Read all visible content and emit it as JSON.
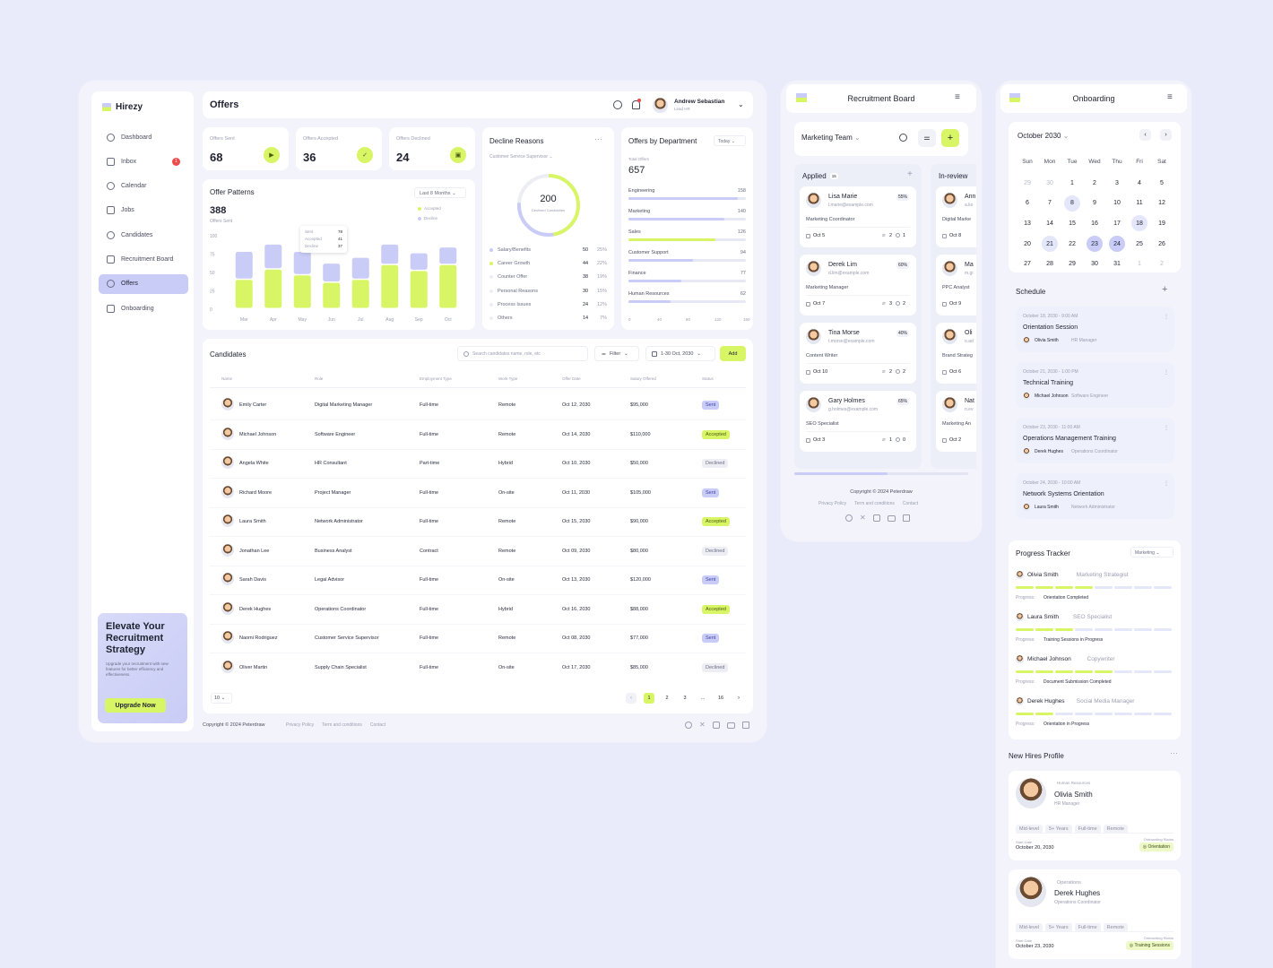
{
  "app": {
    "name": "Hirezy"
  },
  "sidebar": {
    "items": [
      {
        "label": "Dashboard",
        "icon": "grid-icon"
      },
      {
        "label": "Inbox",
        "icon": "inbox-icon",
        "badge": "1"
      },
      {
        "label": "Calendar",
        "icon": "calendar-icon"
      },
      {
        "label": "Jobs",
        "icon": "briefcase-icon"
      },
      {
        "label": "Candidates",
        "icon": "users-icon"
      },
      {
        "label": "Recruitment Board",
        "icon": "board-icon"
      },
      {
        "label": "Offers",
        "icon": "offers-icon",
        "active": true
      },
      {
        "label": "Onboarding",
        "icon": "onboarding-icon"
      }
    ],
    "promo": {
      "title": "Elevate Your Recruitment Strategy",
      "text": "Upgrade your recruitment with new features for better efficiency and effectiveness.",
      "button": "Upgrade Now"
    }
  },
  "header": {
    "title": "Offers",
    "user_name": "Andrew Sebastian",
    "user_role": "Lead HR"
  },
  "stats": [
    {
      "label": "Offers Sent",
      "value": "68",
      "icon": "send-icon"
    },
    {
      "label": "Offers Accepted",
      "value": "36",
      "icon": "check-icon"
    },
    {
      "label": "Offers Declined",
      "value": "24",
      "icon": "decline-icon"
    }
  ],
  "patterns": {
    "title": "Offer Patterns",
    "total": "388",
    "total_label": "Offers Sent",
    "range": "Last 8 Months",
    "legend": [
      "Accepted",
      "Decline"
    ],
    "tooltip": {
      "sent_label": "Sent",
      "sent": "78",
      "acc_label": "Accepted",
      "acc": "41",
      "dec_label": "Decline",
      "dec": "37"
    }
  },
  "chart_data": {
    "type": "bar",
    "title": "Offer Patterns",
    "categories": [
      "Mar",
      "Apr",
      "May",
      "Jun",
      "Jul",
      "Aug",
      "Sep",
      "Oct"
    ],
    "series": [
      {
        "name": "Accepted",
        "values": [
          40,
          54,
          46,
          36,
          40,
          60,
          52,
          60
        ],
        "color": "#d8f565"
      },
      {
        "name": "Decline",
        "values": [
          38,
          34,
          32,
          26,
          30,
          28,
          24,
          24
        ],
        "color": "#c9ccf6"
      }
    ],
    "stacked": true,
    "yticks": [
      "100",
      "75",
      "50",
      "25",
      "0"
    ],
    "ylim": [
      0,
      100
    ],
    "grid": false,
    "legend": "top-right"
  },
  "decline": {
    "title": "Decline Reasons",
    "filter": "Customer Service Supervisor",
    "total": "200",
    "total_label": "Declined Candidates",
    "reasons": [
      {
        "label": "Salary/Benefits",
        "value": "50",
        "pct": "25%"
      },
      {
        "label": "Career Growth",
        "value": "44",
        "pct": "22%"
      },
      {
        "label": "Counter Offer",
        "value": "38",
        "pct": "19%"
      },
      {
        "label": "Personal Reasons",
        "value": "30",
        "pct": "15%"
      },
      {
        "label": "Process Issues",
        "value": "24",
        "pct": "12%"
      },
      {
        "label": "Others",
        "value": "14",
        "pct": "7%"
      }
    ]
  },
  "departments": {
    "title": "Offers by Department",
    "range": "Today",
    "total_label": "Total Offers",
    "total": "657",
    "items": [
      {
        "label": "Engineering",
        "value": "158",
        "frac": 0.93
      },
      {
        "label": "Marketing",
        "value": "140",
        "frac": 0.82
      },
      {
        "label": "Sales",
        "value": "126",
        "frac": 0.74
      },
      {
        "label": "Customer Support",
        "value": "94",
        "frac": 0.55
      },
      {
        "label": "Finance",
        "value": "77",
        "frac": 0.45
      },
      {
        "label": "Human Resources",
        "value": "62",
        "frac": 0.36
      }
    ],
    "axis": [
      "0",
      "40",
      "80",
      "120",
      "160"
    ]
  },
  "candidates": {
    "title": "Candidates",
    "search_placeholder": "Search candidates name, role, etc",
    "filter": "Filter",
    "date": "1-30 Oct, 2030",
    "add": "Add",
    "columns": [
      "Name",
      "Role",
      "Employment Type",
      "Work Type",
      "Offer Date",
      "Salary Offered",
      "Status"
    ],
    "rows": [
      [
        "Emily Carter",
        "Digital Marketing Manager",
        "Full-time",
        "Remote",
        "Oct 12, 2030",
        "$95,000",
        "Sent"
      ],
      [
        "Michael Johnson",
        "Software Engineer",
        "Full-time",
        "Remote",
        "Oct 14, 2030",
        "$110,000",
        "Accepted"
      ],
      [
        "Angela White",
        "HR Consultant",
        "Part-time",
        "Hybrid",
        "Oct 10, 2030",
        "$50,000",
        "Declined"
      ],
      [
        "Richard Moore",
        "Project Manager",
        "Full-time",
        "On-site",
        "Oct 11, 2030",
        "$105,000",
        "Sent"
      ],
      [
        "Laura Smith",
        "Network Administrator",
        "Full-time",
        "Remote",
        "Oct 15, 2030",
        "$90,000",
        "Accepted"
      ],
      [
        "Jonathan Lee",
        "Business Analyst",
        "Contract",
        "Remote",
        "Oct 09, 2030",
        "$80,000",
        "Declined"
      ],
      [
        "Sarah Davis",
        "Legal Advisor",
        "Full-time",
        "On-site",
        "Oct 13, 2030",
        "$120,000",
        "Sent"
      ],
      [
        "Derek Hughes",
        "Operations Coordinator",
        "Full-time",
        "Hybrid",
        "Oct 16, 2030",
        "$88,000",
        "Accepted"
      ],
      [
        "Naomi Rodriguez",
        "Customer Service Supervisor",
        "Full-time",
        "Remote",
        "Oct 08, 2030",
        "$77,000",
        "Sent"
      ],
      [
        "Oliver Martin",
        "Supply Chain Specialist",
        "Full-time",
        "On-site",
        "Oct 17, 2030",
        "$85,000",
        "Declined"
      ]
    ],
    "page_size": "10",
    "pages": [
      "1",
      "2",
      "3",
      "...",
      "16"
    ]
  },
  "footer": {
    "copyright": "Copyright © 2024 Peterdraw",
    "links": [
      "Privacy Policy",
      "Term and conditions",
      "Contact"
    ]
  },
  "board": {
    "title": "Recruitment Board",
    "team": "Marketing Team",
    "col1": {
      "title": "Applied",
      "count": "15"
    },
    "col2": {
      "title": "In-review"
    },
    "cards": [
      {
        "name": "Lisa Marie",
        "email": "l.marie@example.com",
        "pct": "55%",
        "role": "Marketing Coordinator",
        "date": "Oct 5",
        "att": "2",
        "com": "1"
      },
      {
        "name": "Derek Lim",
        "email": "d.lim@example.com",
        "pct": "60%",
        "role": "Marketing Manager",
        "date": "Oct 7",
        "att": "3",
        "com": "2"
      },
      {
        "name": "Tina Morse",
        "email": "t.morse@example.com",
        "pct": "40%",
        "role": "Content Writer",
        "date": "Oct 10",
        "att": "2",
        "com": "2"
      },
      {
        "name": "Gary Holmes",
        "email": "g.holmes@example.com",
        "pct": "65%",
        "role": "SEO Specialist",
        "date": "Oct 3",
        "att": "1",
        "com": "0"
      }
    ],
    "cards2": [
      {
        "name": "Ann",
        "email": "a.ko",
        "role": "Digital Marke",
        "date": "Oct 8"
      },
      {
        "name": "Ma",
        "email": "m.gi",
        "role": "PPC Analyst",
        "date": "Oct 9"
      },
      {
        "name": "Oli",
        "email": "o.ad",
        "role": "Brand Strateg",
        "date": "Oct 6"
      },
      {
        "name": "Nat",
        "email": "n.ev",
        "role": "Marketing An",
        "date": "Oct 2"
      }
    ],
    "footer": "Copyright © 2024 Peterdraw",
    "links": [
      "Privacy Policy",
      "Term and conditions",
      "Contact"
    ]
  },
  "onboarding": {
    "title": "Onboarding",
    "month": "October 2030",
    "weekdays": [
      "Sun",
      "Mon",
      "Tue",
      "Wed",
      "Thu",
      "Fri",
      "Sat"
    ],
    "weeks": [
      [
        "29",
        "30",
        "1",
        "2",
        "3",
        "4",
        "5"
      ],
      [
        "6",
        "7",
        "8",
        "9",
        "10",
        "11",
        "12"
      ],
      [
        "13",
        "14",
        "15",
        "16",
        "17",
        "18",
        "19"
      ],
      [
        "20",
        "21",
        "22",
        "23",
        "24",
        "25",
        "26"
      ],
      [
        "27",
        "28",
        "29",
        "30",
        "31",
        "1",
        "2"
      ]
    ],
    "schedule_title": "Schedule",
    "schedule": [
      {
        "when": "October 18, 2030 - 9:00 AM",
        "title": "Orientation Session",
        "person": "Olivia Smith",
        "role": "HR Manager"
      },
      {
        "when": "October 21, 2030 - 1:00 PM",
        "title": "Technical Training",
        "person": "Michael Johnson",
        "role": "Software Engineer"
      },
      {
        "when": "October 23, 2030 - 11:00 AM",
        "title": "Operations Management Training",
        "person": "Derek Hughes",
        "role": "Operations Coordinator"
      },
      {
        "when": "October 24, 2030 - 10:00 AM",
        "title": "Network Systems Orientation",
        "person": "Laura Smith",
        "role": "Network Administrator"
      }
    ],
    "progress_title": "Progress Tracker",
    "progress_filter": "Marketing",
    "progress_label": "Progress:",
    "progress": [
      {
        "name": "Olivia Smith",
        "role": "Marketing Strategist",
        "status": "Orientation Completed",
        "done": 4
      },
      {
        "name": "Laura Smith",
        "role": "SEO Specialist",
        "status": "Training Sessions in Progress",
        "done": 3
      },
      {
        "name": "Michael Johnson",
        "role": "Copywriter",
        "status": "Document Submission Completed",
        "done": 5
      },
      {
        "name": "Derek Hughes",
        "role": "Social Media Manager",
        "status": "Orientation in Progress",
        "done": 2
      }
    ],
    "hires_title": "New Hires Profile",
    "hires": [
      {
        "dept": "Human Resources",
        "name": "Olivia Smith",
        "role": "HR Manager",
        "tags": [
          "Mid-level",
          "5+ Years",
          "Full-time",
          "Remote"
        ],
        "start_label": "Start Date",
        "start": "October 20, 2030",
        "status_label": "Onboarding Status",
        "status": "Orientation"
      },
      {
        "dept": "Operations",
        "name": "Derek Hughes",
        "role": "Operations Coordinator",
        "tags": [
          "Mid-level",
          "5+ Years",
          "Full-time",
          "Remote"
        ],
        "start_label": "Start Date",
        "start": "October 23, 2030",
        "status_label": "Onboarding Status",
        "status": "Training Sessions"
      }
    ]
  }
}
